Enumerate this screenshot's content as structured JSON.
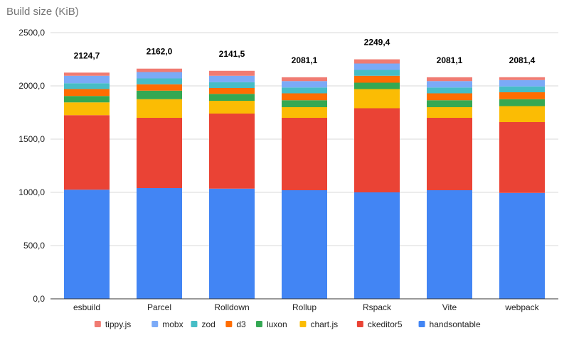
{
  "chart_data": {
    "type": "bar",
    "stacked": true,
    "title": "Build size (KiB)",
    "xlabel": "",
    "ylabel": "",
    "ylim": [
      0,
      2500
    ],
    "yticks": [
      0,
      500,
      1000,
      1500,
      2000,
      2500
    ],
    "ytick_labels": [
      "0,0",
      "500,0",
      "1000,0",
      "1500,0",
      "2000,0",
      "2500,0"
    ],
    "grid": true,
    "legend_position": "bottom",
    "categories": [
      "esbuild",
      "Parcel",
      "Rolldown",
      "Rollup",
      "Rspack",
      "Vite",
      "webpack"
    ],
    "totals": [
      2124.7,
      2162.0,
      2141.5,
      2081.1,
      2249.4,
      2081.1,
      2081.4
    ],
    "total_labels": [
      "2124,7",
      "2162,0",
      "2141,5",
      "2081,1",
      "2249,4",
      "2081,1",
      "2081,4"
    ],
    "series": [
      {
        "name": "handsontable",
        "color": "#4285f4",
        "values": [
          1025,
          1040,
          1035,
          1020,
          1000,
          1020,
          995
        ]
      },
      {
        "name": "ckeditor5",
        "color": "#ea4335",
        "values": [
          700,
          660,
          705,
          680,
          790,
          680,
          665
        ]
      },
      {
        "name": "chart.js",
        "color": "#fbbc04",
        "values": [
          120,
          175,
          120,
          100,
          180,
          100,
          150
        ]
      },
      {
        "name": "luxon",
        "color": "#34a853",
        "values": [
          60,
          80,
          65,
          65,
          60,
          65,
          65
        ]
      },
      {
        "name": "d3",
        "color": "#ff6d01",
        "values": [
          65,
          60,
          55,
          65,
          65,
          65,
          65
        ]
      },
      {
        "name": "zod",
        "color": "#46bdc6",
        "values": [
          55,
          55,
          55,
          55,
          55,
          55,
          55
        ]
      },
      {
        "name": "mobx",
        "color": "#7baaf7",
        "values": [
          70,
          60,
          60,
          60,
          60,
          60,
          60
        ]
      },
      {
        "name": "tippy.js",
        "color": "#f07b72",
        "values": [
          29.7,
          32,
          46.5,
          36.1,
          39.4,
          36.1,
          26.4
        ]
      }
    ],
    "legend_order": [
      "tippy.js",
      "mobx",
      "zod",
      "d3",
      "luxon",
      "chart.js",
      "ckeditor5",
      "handsontable"
    ]
  }
}
